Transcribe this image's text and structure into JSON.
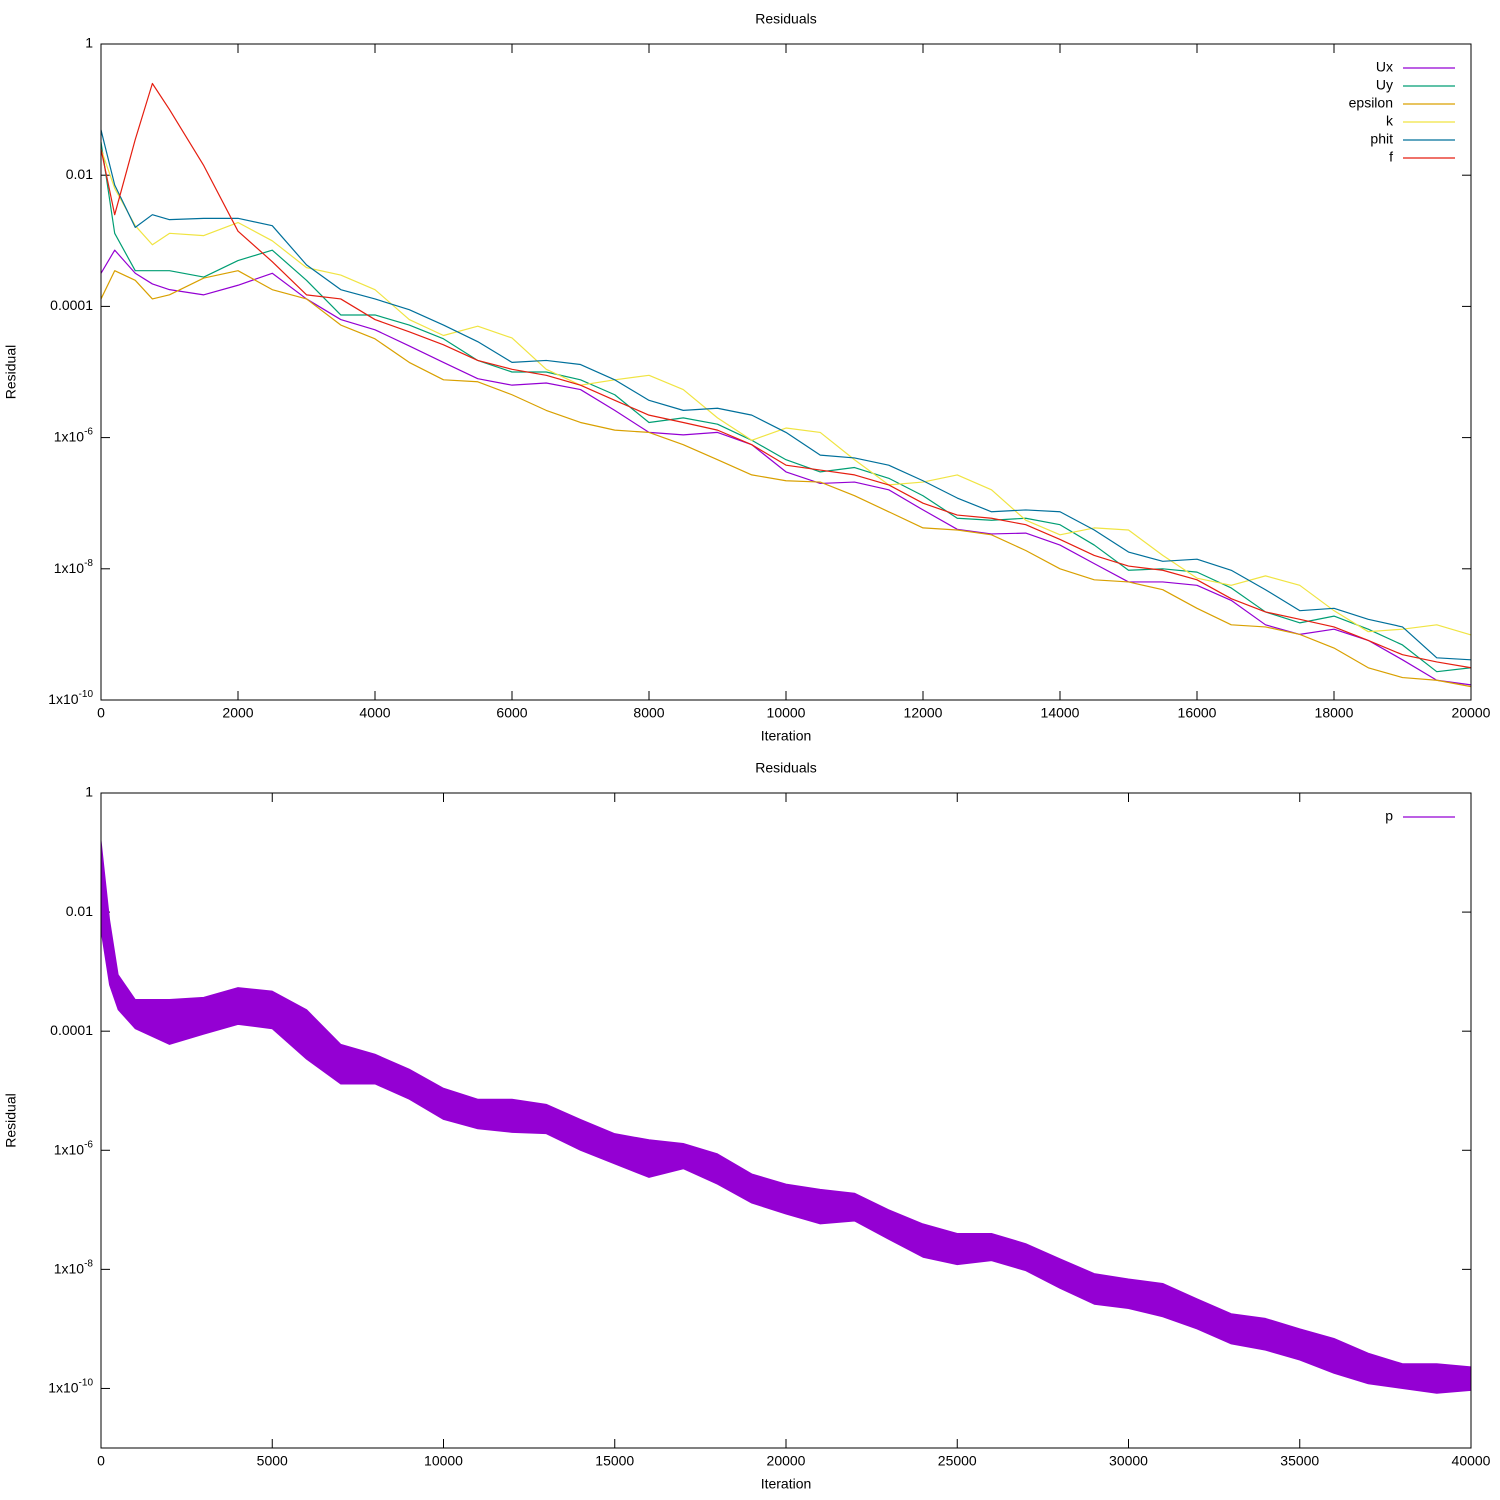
{
  "chart_data": [
    {
      "type": "line",
      "title": "Residuals",
      "xlabel": "Iteration",
      "ylabel": "Residual",
      "log_y": true,
      "legend": "top-right",
      "xlim": [
        0,
        20000
      ],
      "xticks": [
        0,
        2000,
        4000,
        6000,
        8000,
        10000,
        12000,
        14000,
        16000,
        18000,
        20000
      ],
      "ylim": [
        1e-10,
        1
      ],
      "yticks": [
        1,
        0.01,
        0.0001,
        {
          "value": 1e-06,
          "label": "1x10-6"
        },
        {
          "value": 1e-08,
          "label": "1x10-8"
        },
        {
          "value": 1e-10,
          "label": "1x10-10"
        }
      ],
      "x": [
        0,
        200,
        500,
        750,
        1000,
        1500,
        2000,
        2500,
        3000,
        3500,
        4000,
        4500,
        5000,
        5500,
        6000,
        6500,
        7000,
        7500,
        8000,
        8500,
        9000,
        9500,
        10000,
        10500,
        11000,
        11500,
        12000,
        12500,
        13000,
        13500,
        14000,
        14500,
        15000,
        15500,
        16000,
        16500,
        17000,
        17500,
        18000,
        18500,
        19000,
        19500,
        20000
      ],
      "series": [
        {
          "name": "Ux",
          "color": "#9400d3",
          "values": [
            0.00032,
            0.00072,
            0.00032,
            0.00022,
            0.00018,
            0.00015,
            0.00021,
            0.00032,
            0.00013,
            6.3e-05,
            4.4e-05,
            2.5e-05,
            1.4e-05,
            7.9e-06,
            6.3e-06,
            6.8e-06,
            5.4e-06,
            2.6e-06,
            1.2e-06,
            1.1e-06,
            1.2e-06,
            7.8e-07,
            3e-07,
            2e-07,
            2.1e-07,
            1.6e-07,
            7.9e-08,
            4e-08,
            3.4e-08,
            3.5e-08,
            2.3e-08,
            1.2e-08,
            6.3e-09,
            6.3e-09,
            5.6e-09,
            3.3e-09,
            1.4e-09,
            1e-09,
            1.2e-09,
            8.1e-10,
            4.1e-10,
            2e-10,
            1.7e-10
          ]
        },
        {
          "name": "Uy",
          "color": "#009e73",
          "values": [
            0.032,
            0.0013,
            0.00035,
            0.00035,
            0.00035,
            0.00028,
            0.0005,
            0.00072,
            0.00025,
            7.4e-05,
            7.4e-05,
            5.2e-05,
            3.2e-05,
            1.5e-05,
            1e-05,
            1e-05,
            7.6e-06,
            4.5e-06,
            1.7e-06,
            2e-06,
            1.6e-06,
            9.1e-07,
            4.6e-07,
            3e-07,
            3.5e-07,
            2.4e-07,
            1.3e-07,
            5.9e-08,
            5.5e-08,
            5.9e-08,
            4.7e-08,
            2.3e-08,
            9.5e-09,
            1e-08,
            8.9e-09,
            5.1e-09,
            2.2e-09,
            1.5e-09,
            1.9e-09,
            1.2e-09,
            6.9e-10,
            2.7e-10,
            3.1e-10
          ]
        },
        {
          "name": "epsilon",
          "color": "#d9a000",
          "values": [
            0.00013,
            0.00035,
            0.00025,
            0.00013,
            0.00015,
            0.00027,
            0.00035,
            0.00018,
            0.00013,
            5.2e-05,
            3.2e-05,
            1.4e-05,
            7.6e-06,
            7.1e-06,
            4.5e-06,
            2.6e-06,
            1.7e-06,
            1.3e-06,
            1.2e-06,
            7.8e-07,
            4.6e-07,
            2.7e-07,
            2.2e-07,
            2.1e-07,
            1.3e-07,
            7.4e-08,
            4.2e-08,
            3.9e-08,
            3.3e-08,
            1.9e-08,
            1e-08,
            6.8e-09,
            6.3e-09,
            4.8e-09,
            2.5e-09,
            1.4e-09,
            1.3e-09,
            1e-09,
            6.2e-10,
            3.1e-10,
            2.2e-10,
            2e-10,
            1.6e-10
          ]
        },
        {
          "name": "k",
          "color": "#f0e442",
          "values": [
            0.025,
            0.0063,
            0.0017,
            0.00087,
            0.0013,
            0.0012,
            0.0019,
            0.001,
            0.00039,
            0.0003,
            0.00018,
            6.3e-05,
            3.6e-05,
            5e-05,
            3.3e-05,
            1.1e-05,
            6.3e-06,
            7.6e-06,
            8.9e-06,
            5.4e-06,
            2e-06,
            9.1e-07,
            1.4e-06,
            1.2e-06,
            4.6e-07,
            1.9e-07,
            2.1e-07,
            2.7e-07,
            1.6e-07,
            5.5e-08,
            3.3e-08,
            4.2e-08,
            3.9e-08,
            1.6e-08,
            7.2e-09,
            5.6e-09,
            7.8e-09,
            5.6e-09,
            2.3e-09,
            1.1e-09,
            1.2e-09,
            1.4e-09,
            9.8e-10
          ]
        },
        {
          "name": "phit",
          "color": "#00709b",
          "values": [
            0.049,
            0.0071,
            0.0016,
            0.0025,
            0.0021,
            0.0022,
            0.0022,
            0.0017,
            0.00043,
            0.00018,
            0.00013,
            8.9e-05,
            5.2e-05,
            2.9e-05,
            1.4e-05,
            1.5e-05,
            1.3e-05,
            7.6e-06,
            3.7e-06,
            2.6e-06,
            2.8e-06,
            2.2e-06,
            1.2e-06,
            5.4e-07,
            4.9e-07,
            3.8e-07,
            2.2e-07,
            1.2e-07,
            7.4e-08,
            7.9e-08,
            7.4e-08,
            3.9e-08,
            1.8e-08,
            1.3e-08,
            1.4e-08,
            9.5e-09,
            4.8e-09,
            2.3e-09,
            2.5e-09,
            1.7e-09,
            1.3e-09,
            4.4e-10,
            4.1e-10
          ]
        },
        {
          "name": "f",
          "color": "#e51e10",
          "values": [
            0.025,
            0.0025,
            0.035,
            0.25,
            0.1,
            0.014,
            0.0014,
            0.00048,
            0.00015,
            0.00013,
            6.3e-05,
            4.1e-05,
            2.6e-05,
            1.5e-05,
            1.1e-05,
            8.9e-06,
            6.3e-06,
            3.7e-06,
            2.2e-06,
            1.7e-06,
            1.3e-06,
            7.8e-07,
            3.8e-07,
            3.2e-07,
            2.7e-07,
            1.9e-07,
            1e-07,
            6.6e-08,
            5.9e-08,
            4.7e-08,
            2.8e-08,
            1.6e-08,
            1.1e-08,
            9.5e-09,
            6.8e-09,
            3.5e-09,
            2.2e-09,
            1.7e-09,
            1.3e-09,
            8.1e-10,
            4.9e-10,
            3.8e-10,
            3.1e-10
          ]
        }
      ]
    },
    {
      "type": "band",
      "title": "Residuals",
      "xlabel": "Iteration",
      "ylabel": "Residual",
      "log_y": true,
      "legend": "top-right",
      "xlim": [
        0,
        40000
      ],
      "xticks": [
        0,
        5000,
        10000,
        15000,
        20000,
        25000,
        30000,
        35000,
        40000
      ],
      "ylim": [
        1e-11,
        1
      ],
      "yticks": [
        1,
        0.01,
        0.0001,
        {
          "value": 1e-06,
          "label": "1x10-6"
        },
        {
          "value": 1e-08,
          "label": "1x10-8"
        },
        {
          "value": 1e-10,
          "label": "1x10-10"
        }
      ],
      "x": [
        0,
        250,
        500,
        1000,
        2000,
        3000,
        4000,
        5000,
        6000,
        7000,
        8000,
        9000,
        10000,
        11000,
        12000,
        13000,
        14000,
        15000,
        16000,
        17000,
        18000,
        19000,
        20000,
        21000,
        22000,
        23000,
        24000,
        25000,
        26000,
        27000,
        28000,
        29000,
        30000,
        31000,
        32000,
        33000,
        34000,
        35000,
        36000,
        37000,
        38000,
        39000,
        40000
      ],
      "series": [
        {
          "name": "p",
          "color": "#9400d3",
          "high": [
            0.16,
            0.0074,
            0.00089,
            0.00034,
            0.00034,
            0.00037,
            0.00054,
            0.00047,
            0.00023,
            6e-05,
            4.1e-05,
            2.3e-05,
            1.1e-05,
            7.2e-06,
            7.2e-06,
            5.9e-06,
            3.3e-06,
            1.9e-06,
            1.5e-06,
            1.3e-06,
            8.7e-07,
            4e-07,
            2.7e-07,
            2.2e-07,
            1.9e-07,
            1e-07,
            5.8e-08,
            4e-08,
            4e-08,
            2.7e-08,
            1.5e-08,
            8.5e-09,
            6.9e-09,
            5.8e-09,
            3.2e-09,
            1.8e-09,
            1.5e-09,
            1e-09,
            6.9e-10,
            3.9e-10,
            2.6e-10,
            2.6e-10,
            2.3e-10
          ],
          "low": [
            0.005,
            0.0006,
            0.00023,
            0.00011,
            6e-05,
            8.9e-05,
            0.00013,
            0.00011,
            3.4e-05,
            1.3e-05,
            1.3e-05,
            7.2e-06,
            3.3e-06,
            2.3e-06,
            2e-06,
            1.9e-06,
            1e-06,
            5.9e-07,
            3.5e-07,
            4.9e-07,
            2.7e-07,
            1.3e-07,
            8.5e-08,
            5.8e-08,
            6.5e-08,
            3.2e-08,
            1.6e-08,
            1.2e-08,
            1.4e-08,
            9.5e-09,
            4.8e-09,
            2.6e-09,
            2.2e-09,
            1.6e-09,
            1e-09,
            5.6e-10,
            4.4e-10,
            3e-10,
            1.8e-10,
            1.2e-10,
            1e-10,
            8.3e-11,
            9.3e-11
          ]
        }
      ]
    }
  ]
}
